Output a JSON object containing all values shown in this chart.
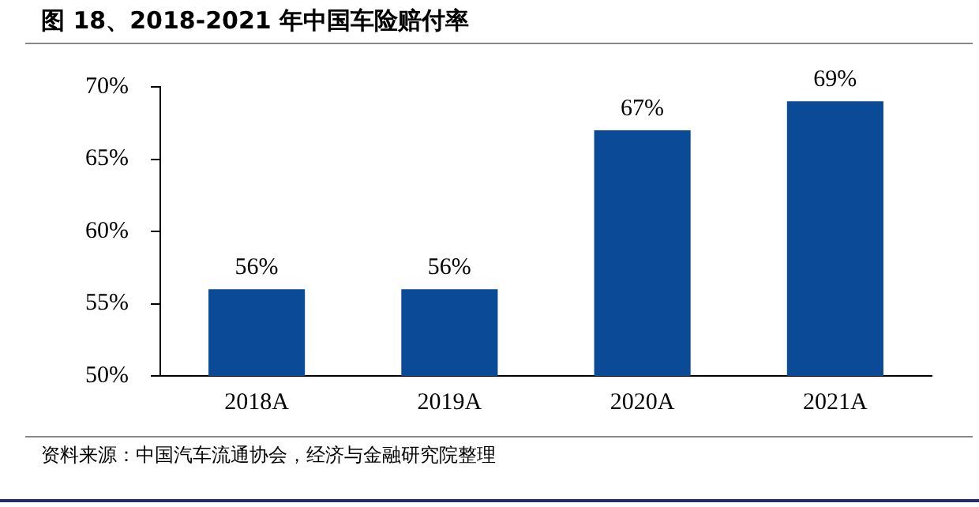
{
  "chart_data": {
    "type": "bar",
    "title": "图 18、2018-2021 年中国车险赔付率",
    "categories": [
      "2018A",
      "2019A",
      "2020A",
      "2021A"
    ],
    "values": [
      56,
      56,
      67,
      69
    ],
    "color": "#0b4a97",
    "value_labels": [
      "56%",
      "56%",
      "67%",
      "69%"
    ],
    "ylim": [
      50,
      70
    ],
    "yticks": [
      {
        "value": 50,
        "label": "50%"
      },
      {
        "value": 55,
        "label": "55%"
      },
      {
        "value": 60,
        "label": "60%"
      },
      {
        "value": 65,
        "label": "65%"
      },
      {
        "value": 70,
        "label": "70%"
      }
    ],
    "annotations": [
      "资料来源：中国汽车流通协会，经济与金融研究院整理"
    ]
  }
}
